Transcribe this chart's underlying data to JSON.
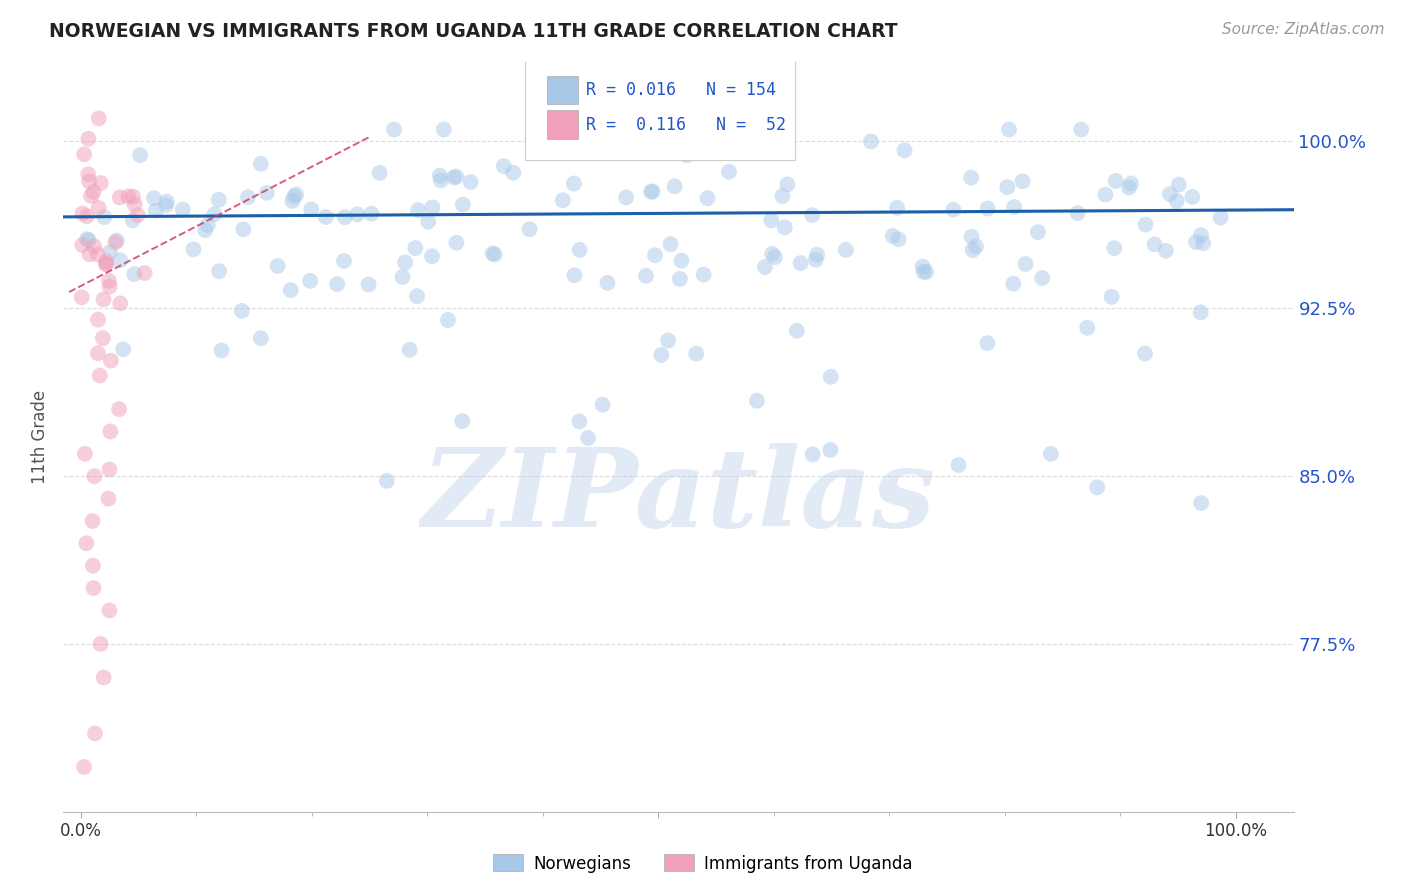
{
  "title": "NORWEGIAN VS IMMIGRANTS FROM UGANDA 11TH GRADE CORRELATION CHART",
  "source_text": "Source: ZipAtlas.com",
  "ylabel": "11th Grade",
  "watermark": "ZIPatlas",
  "blue_color": "#a8c8e8",
  "pink_color": "#f0a0b8",
  "blue_line_color": "#1a5fa8",
  "pink_line_color": "#d04060",
  "legend_color": "#2255cc",
  "ymin": 0.7,
  "ymax": 1.035,
  "xmin": -0.015,
  "xmax": 1.05,
  "ytick_vals": [
    0.775,
    0.85,
    0.925,
    1.0
  ],
  "ytick_labels": [
    "77.5%",
    "85.0%",
    "92.5%",
    "100.0%"
  ],
  "background_color": "#ffffff",
  "grid_color": "#cccccc",
  "title_color": "#222222",
  "dot_size": 130,
  "dot_alpha": 0.5,
  "legend_label_blue": "Norwegians",
  "legend_label_pink": "Immigrants from Uganda",
  "blue_trend_y": 0.966,
  "blue_trend_slope": 0.003,
  "pink_trend_x0": 0.0,
  "pink_trend_y0": 0.935,
  "pink_trend_x1": 0.15,
  "pink_trend_y1": 0.975
}
